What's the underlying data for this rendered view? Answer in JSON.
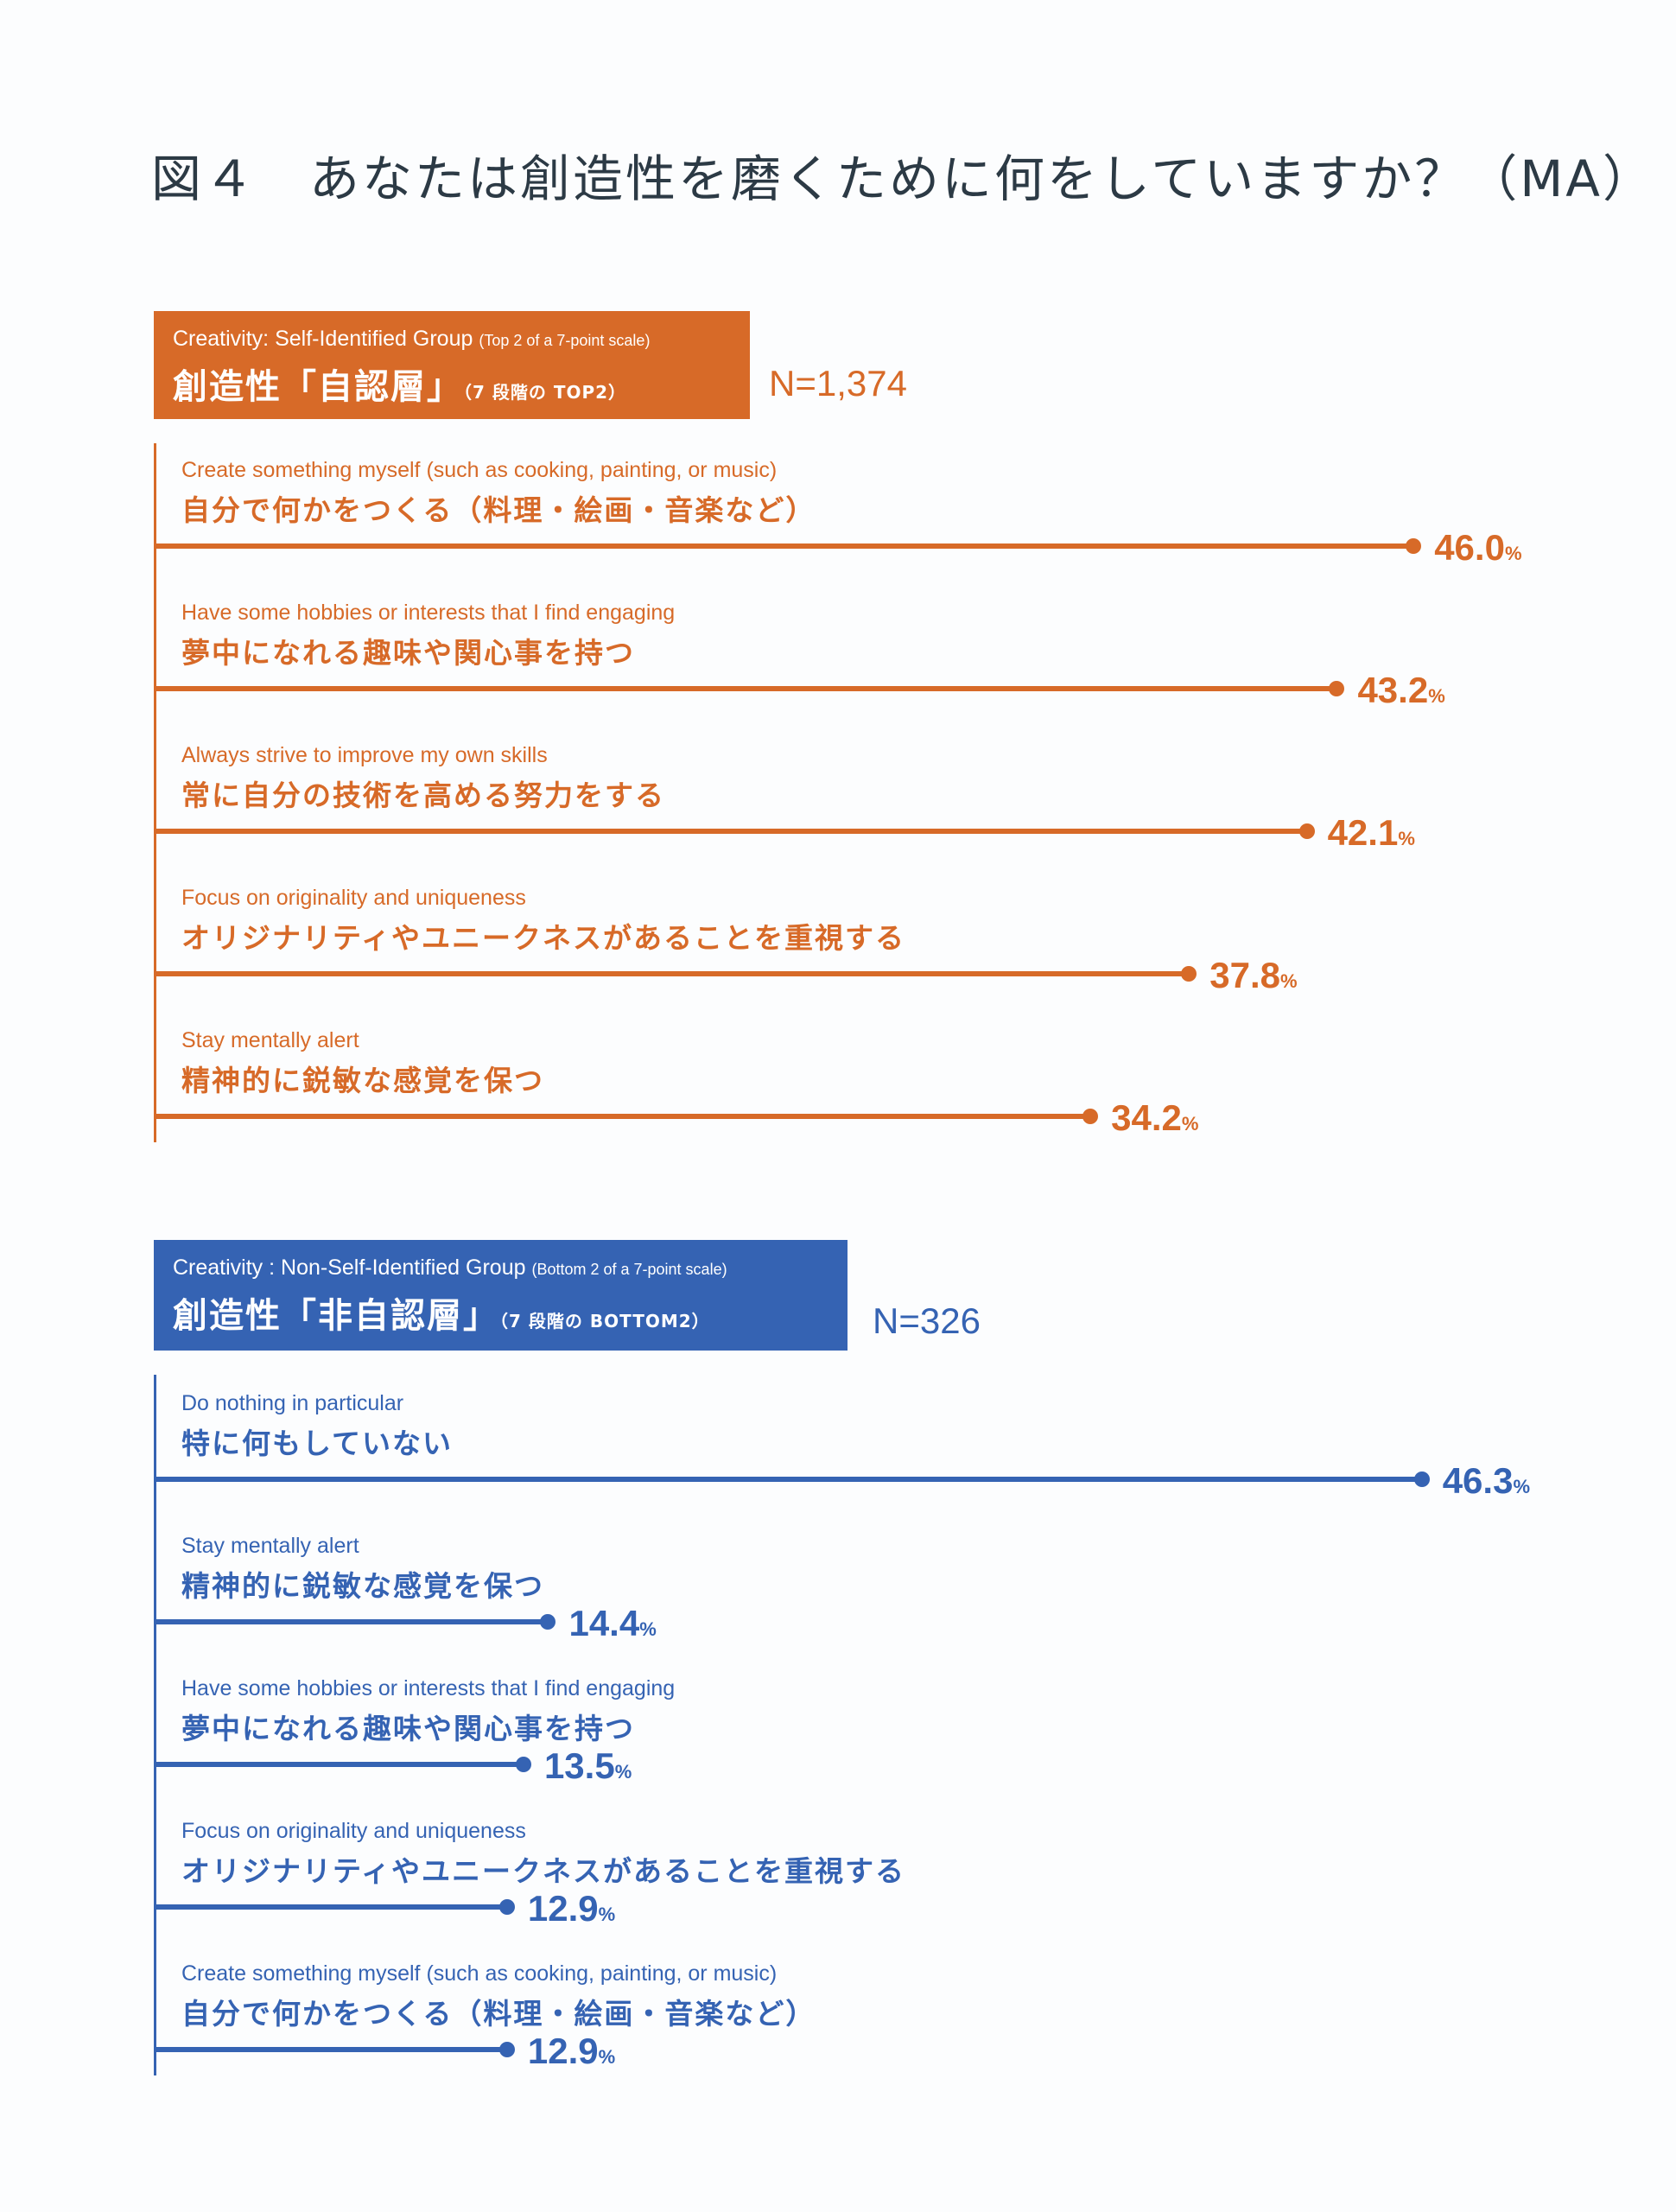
{
  "title": "図４　あなたは創造性を磨くために何をしていますか？（MA）",
  "colors": {
    "orange": "#d76a28",
    "blue": "#3563b3",
    "text": "#2c3a45"
  },
  "chart_data": [
    {
      "type": "bar",
      "orientation": "horizontal",
      "header": {
        "en": "Creativity: Self-Identified Group",
        "en_note": "(Top 2 of a 7-point scale)",
        "jp": "創造性「自認層」",
        "jp_note": "（7 段階の TOP2）"
      },
      "n": "N=1,374",
      "unit": "%",
      "color": "#d76a28",
      "categories": [
        {
          "en": "Create something myself (such as cooking, painting, or music)",
          "jp": "自分で何かをつくる（料理・絵画・音楽など）",
          "value": 46.0,
          "label": "46.0"
        },
        {
          "en": "Have some hobbies or interests that I find engaging",
          "jp": "夢中になれる趣味や関心事を持つ",
          "value": 43.2,
          "label": "43.2"
        },
        {
          "en": "Always strive to improve my own skills",
          "jp": "常に自分の技術を高める努力をする",
          "value": 42.1,
          "label": "42.1"
        },
        {
          "en": "Focus on originality and uniqueness",
          "jp": "オリジナリティやユニークネスがあることを重視する",
          "value": 37.8,
          "label": "37.8"
        },
        {
          "en": "Stay mentally alert",
          "jp": "精神的に鋭敏な感覚を保つ",
          "value": 34.2,
          "label": "34.2"
        }
      ]
    },
    {
      "type": "bar",
      "orientation": "horizontal",
      "header": {
        "en": "Creativity : Non-Self-Identified Group",
        "en_note": "(Bottom 2 of a 7-point scale)",
        "jp": "創造性「非自認層」",
        "jp_note": "（7 段階の BOTTOM2）"
      },
      "n": "N=326",
      "unit": "%",
      "color": "#3563b3",
      "categories": [
        {
          "en": "Do nothing in particular",
          "jp": "特に何もしていない",
          "value": 46.3,
          "label": "46.3"
        },
        {
          "en": "Stay mentally alert",
          "jp": "精神的に鋭敏な感覚を保つ",
          "value": 14.4,
          "label": "14.4"
        },
        {
          "en": "Have some hobbies or interests that I find engaging",
          "jp": "夢中になれる趣味や関心事を持つ",
          "value": 13.5,
          "label": "13.5"
        },
        {
          "en": "Focus on originality and uniqueness",
          "jp": "オリジナリティやユニークネスがあることを重視する",
          "value": 12.9,
          "label": "12.9"
        },
        {
          "en": "Create something myself (such as cooking, painting, or music)",
          "jp": "自分で何かをつくる（料理・絵画・音楽など）",
          "value": 12.9,
          "label": "12.9"
        }
      ]
    }
  ]
}
